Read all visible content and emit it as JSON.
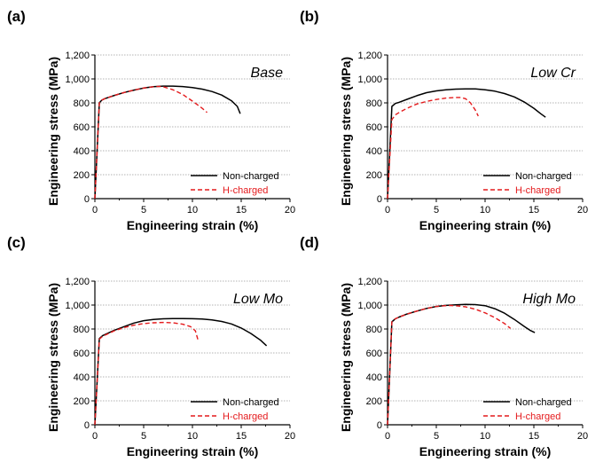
{
  "chart_data": [
    {
      "type": "line",
      "panel": "(a)",
      "annotation": "Base",
      "xlabel": "Engineering strain (%)",
      "ylabel": "Engineering stress (MPa)",
      "xlim": [
        0,
        20
      ],
      "ylim": [
        0,
        1200
      ],
      "xticks": [
        "0",
        "5",
        "10",
        "15",
        "20"
      ],
      "yticks": [
        "0",
        "200",
        "400",
        "600",
        "800",
        "1,000",
        "1,200"
      ],
      "gridlines_y": [
        200,
        400,
        600,
        800,
        1000,
        1200
      ],
      "legend_position": "bottom-right",
      "series": [
        {
          "name": "Non-charged",
          "color": "#000000",
          "style": "solid",
          "x": [
            0,
            0.45,
            0.7,
            1,
            2,
            3,
            4,
            5,
            6,
            7,
            8,
            9,
            10,
            11,
            12,
            13,
            14,
            14.6,
            14.9
          ],
          "y": [
            0,
            800,
            822,
            835,
            862,
            887,
            907,
            924,
            935,
            940,
            940,
            936,
            928,
            915,
            895,
            865,
            818,
            770,
            710
          ]
        },
        {
          "name": "H-charged",
          "color": "#e41a1c",
          "style": "dashed",
          "x": [
            0,
            0.45,
            0.7,
            1,
            2,
            3,
            4,
            5,
            6,
            6.5,
            7,
            8,
            9,
            10,
            11,
            11.5
          ],
          "y": [
            0,
            800,
            822,
            835,
            862,
            887,
            907,
            924,
            935,
            938,
            935,
            910,
            870,
            815,
            755,
            720
          ]
        }
      ]
    },
    {
      "type": "line",
      "panel": "(b)",
      "annotation": "Low Cr",
      "xlabel": "Engineering strain (%)",
      "ylabel": "Engineering stress (MPa)",
      "xlim": [
        0,
        20
      ],
      "ylim": [
        0,
        1200
      ],
      "xticks": [
        "0",
        "5",
        "10",
        "15",
        "20"
      ],
      "yticks": [
        "0",
        "200",
        "400",
        "600",
        "800",
        "1,000",
        "1,200"
      ],
      "gridlines_y": [
        200,
        400,
        600,
        800,
        1000,
        1200
      ],
      "legend_position": "bottom-right",
      "series": [
        {
          "name": "Non-charged",
          "color": "#000000",
          "style": "solid",
          "x": [
            0,
            0.45,
            0.8,
            1.2,
            2,
            3,
            4,
            5,
            6,
            7,
            8,
            9,
            10,
            11,
            12,
            13,
            14,
            15,
            15.7,
            16.2
          ],
          "y": [
            0,
            770,
            795,
            805,
            830,
            860,
            885,
            900,
            910,
            915,
            917,
            916,
            910,
            898,
            878,
            850,
            808,
            755,
            710,
            680
          ]
        },
        {
          "name": "H-charged",
          "color": "#e41a1c",
          "style": "dashed",
          "x": [
            0,
            0.45,
            0.8,
            1.2,
            2,
            3,
            4,
            5,
            6,
            7,
            7.5,
            8,
            8.5,
            9,
            9.3
          ],
          "y": [
            0,
            660,
            700,
            720,
            755,
            790,
            812,
            828,
            840,
            845,
            845,
            835,
            800,
            740,
            690
          ]
        }
      ]
    },
    {
      "type": "line",
      "panel": "(c)",
      "annotation": "Low Mo",
      "xlabel": "Engineering strain (%)",
      "ylabel": "Engineering stress (MPa)",
      "xlim": [
        0,
        20
      ],
      "ylim": [
        0,
        1200
      ],
      "xticks": [
        "0",
        "5",
        "10",
        "15",
        "20"
      ],
      "yticks": [
        "0",
        "200",
        "400",
        "600",
        "800",
        "1,000",
        "1,200"
      ],
      "gridlines_y": [
        200,
        400,
        600,
        800,
        1000,
        1200
      ],
      "legend_position": "bottom-right",
      "series": [
        {
          "name": "Non-charged",
          "color": "#000000",
          "style": "solid",
          "x": [
            0,
            0.45,
            0.8,
            1.2,
            2,
            3,
            4,
            5,
            6,
            7,
            8,
            9,
            10,
            11,
            12,
            13,
            14,
            15,
            16,
            17,
            17.6
          ],
          "y": [
            0,
            720,
            745,
            760,
            790,
            820,
            850,
            870,
            880,
            885,
            887,
            887,
            886,
            883,
            876,
            863,
            842,
            808,
            762,
            705,
            660
          ]
        },
        {
          "name": "H-charged",
          "color": "#e41a1c",
          "style": "dashed",
          "x": [
            0,
            0.45,
            0.8,
            1.2,
            2,
            3,
            4,
            5,
            6,
            7,
            8,
            9,
            9.8,
            10.3,
            10.6
          ],
          "y": [
            0,
            715,
            740,
            755,
            785,
            812,
            832,
            845,
            852,
            855,
            852,
            840,
            820,
            785,
            700
          ]
        }
      ]
    },
    {
      "type": "line",
      "panel": "(d)",
      "annotation": "High Mo",
      "xlabel": "Engineering strain (%)",
      "ylabel": "Engineering stress (MPa)",
      "xlim": [
        0,
        20
      ],
      "ylim": [
        0,
        1200
      ],
      "xticks": [
        "0",
        "5",
        "10",
        "15",
        "20"
      ],
      "yticks": [
        "0",
        "200",
        "400",
        "600",
        "800",
        "1,000",
        "1,200"
      ],
      "gridlines_y": [
        200,
        400,
        600,
        800,
        1000,
        1200
      ],
      "legend_position": "bottom-right",
      "series": [
        {
          "name": "Non-charged",
          "color": "#000000",
          "style": "solid",
          "x": [
            0,
            0.45,
            0.8,
            1.2,
            2,
            3,
            4,
            5,
            6,
            7,
            8,
            9,
            10,
            11,
            12,
            13,
            14,
            14.6,
            15.1
          ],
          "y": [
            0,
            860,
            885,
            900,
            925,
            950,
            972,
            988,
            997,
            1002,
            1005,
            1004,
            995,
            970,
            932,
            880,
            822,
            790,
            770
          ]
        },
        {
          "name": "H-charged",
          "color": "#e41a1c",
          "style": "dashed",
          "x": [
            0,
            0.45,
            0.8,
            1.2,
            2,
            3,
            4,
            5,
            6,
            6.5,
            7,
            8,
            9,
            10,
            11,
            12,
            12.6
          ],
          "y": [
            0,
            860,
            885,
            900,
            925,
            950,
            972,
            988,
            995,
            996,
            994,
            985,
            965,
            935,
            895,
            845,
            805
          ]
        }
      ]
    }
  ]
}
